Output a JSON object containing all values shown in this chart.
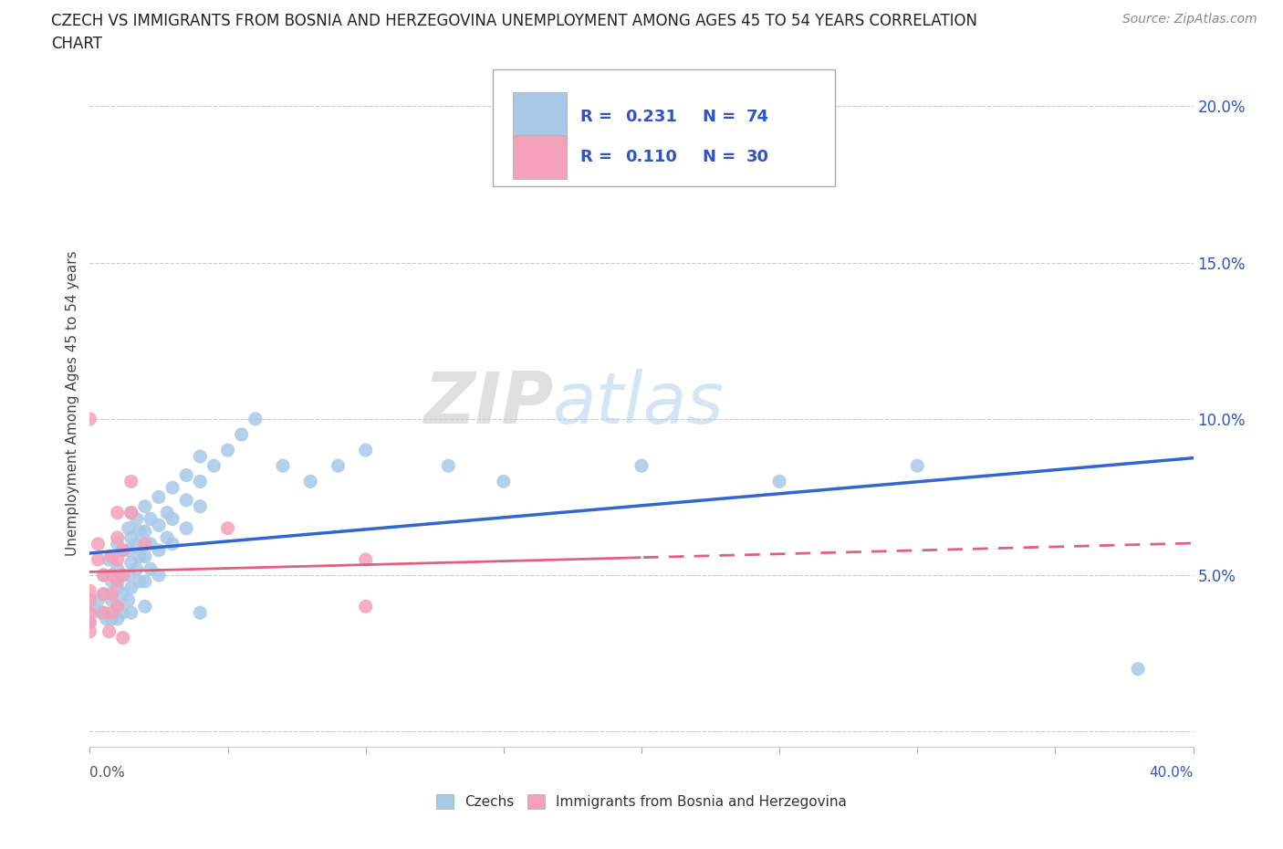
{
  "title_line1": "CZECH VS IMMIGRANTS FROM BOSNIA AND HERZEGOVINA UNEMPLOYMENT AMONG AGES 45 TO 54 YEARS CORRELATION",
  "title_line2": "CHART",
  "source": "Source: ZipAtlas.com",
  "ylabel": "Unemployment Among Ages 45 to 54 years",
  "ytick_labels": [
    "",
    "5.0%",
    "10.0%",
    "15.0%",
    "20.0%"
  ],
  "xlim": [
    0.0,
    0.4
  ],
  "ylim": [
    -0.005,
    0.215
  ],
  "czech_color": "#a8c8e8",
  "bosnian_color": "#f4a0b8",
  "czech_line_color": "#3366cc",
  "bosnian_line_color": "#e06080",
  "R_czech": "0.231",
  "N_czech": "74",
  "R_bosnian": "0.110",
  "N_bosnian": "30",
  "watermark_zip": "ZIP",
  "watermark_atlas": "atlas",
  "legend_text_color": "#3355bb",
  "czech_points": [
    [
      0.0,
      0.04
    ],
    [
      0.0,
      0.035
    ],
    [
      0.003,
      0.042
    ],
    [
      0.004,
      0.038
    ],
    [
      0.005,
      0.05
    ],
    [
      0.005,
      0.044
    ],
    [
      0.005,
      0.038
    ],
    [
      0.006,
      0.036
    ],
    [
      0.007,
      0.055
    ],
    [
      0.008,
      0.048
    ],
    [
      0.008,
      0.042
    ],
    [
      0.008,
      0.036
    ],
    [
      0.01,
      0.06
    ],
    [
      0.01,
      0.052
    ],
    [
      0.01,
      0.046
    ],
    [
      0.01,
      0.04
    ],
    [
      0.01,
      0.036
    ],
    [
      0.012,
      0.058
    ],
    [
      0.012,
      0.05
    ],
    [
      0.012,
      0.044
    ],
    [
      0.012,
      0.038
    ],
    [
      0.014,
      0.065
    ],
    [
      0.014,
      0.058
    ],
    [
      0.014,
      0.05
    ],
    [
      0.014,
      0.042
    ],
    [
      0.015,
      0.07
    ],
    [
      0.015,
      0.062
    ],
    [
      0.015,
      0.054
    ],
    [
      0.015,
      0.046
    ],
    [
      0.015,
      0.038
    ],
    [
      0.017,
      0.068
    ],
    [
      0.017,
      0.06
    ],
    [
      0.017,
      0.052
    ],
    [
      0.018,
      0.064
    ],
    [
      0.018,
      0.056
    ],
    [
      0.018,
      0.048
    ],
    [
      0.02,
      0.072
    ],
    [
      0.02,
      0.064
    ],
    [
      0.02,
      0.056
    ],
    [
      0.02,
      0.048
    ],
    [
      0.02,
      0.04
    ],
    [
      0.022,
      0.068
    ],
    [
      0.022,
      0.06
    ],
    [
      0.022,
      0.052
    ],
    [
      0.025,
      0.075
    ],
    [
      0.025,
      0.066
    ],
    [
      0.025,
      0.058
    ],
    [
      0.025,
      0.05
    ],
    [
      0.028,
      0.07
    ],
    [
      0.028,
      0.062
    ],
    [
      0.03,
      0.078
    ],
    [
      0.03,
      0.068
    ],
    [
      0.03,
      0.06
    ],
    [
      0.035,
      0.082
    ],
    [
      0.035,
      0.074
    ],
    [
      0.035,
      0.065
    ],
    [
      0.04,
      0.088
    ],
    [
      0.04,
      0.08
    ],
    [
      0.04,
      0.072
    ],
    [
      0.04,
      0.038
    ],
    [
      0.045,
      0.085
    ],
    [
      0.05,
      0.09
    ],
    [
      0.055,
      0.095
    ],
    [
      0.06,
      0.1
    ],
    [
      0.07,
      0.085
    ],
    [
      0.08,
      0.08
    ],
    [
      0.09,
      0.085
    ],
    [
      0.1,
      0.09
    ],
    [
      0.13,
      0.085
    ],
    [
      0.15,
      0.08
    ],
    [
      0.2,
      0.085
    ],
    [
      0.25,
      0.08
    ],
    [
      0.3,
      0.085
    ],
    [
      0.38,
      0.02
    ]
  ],
  "bosnian_points": [
    [
      0.0,
      0.045
    ],
    [
      0.0,
      0.042
    ],
    [
      0.0,
      0.038
    ],
    [
      0.0,
      0.035
    ],
    [
      0.0,
      0.032
    ],
    [
      0.0,
      0.1
    ],
    [
      0.003,
      0.06
    ],
    [
      0.003,
      0.055
    ],
    [
      0.005,
      0.05
    ],
    [
      0.005,
      0.044
    ],
    [
      0.005,
      0.038
    ],
    [
      0.007,
      0.032
    ],
    [
      0.008,
      0.056
    ],
    [
      0.008,
      0.05
    ],
    [
      0.008,
      0.044
    ],
    [
      0.008,
      0.038
    ],
    [
      0.01,
      0.07
    ],
    [
      0.01,
      0.062
    ],
    [
      0.01,
      0.055
    ],
    [
      0.01,
      0.048
    ],
    [
      0.01,
      0.04
    ],
    [
      0.012,
      0.058
    ],
    [
      0.012,
      0.05
    ],
    [
      0.012,
      0.03
    ],
    [
      0.015,
      0.08
    ],
    [
      0.015,
      0.07
    ],
    [
      0.02,
      0.06
    ],
    [
      0.05,
      0.065
    ],
    [
      0.1,
      0.055
    ],
    [
      0.1,
      0.04
    ]
  ]
}
